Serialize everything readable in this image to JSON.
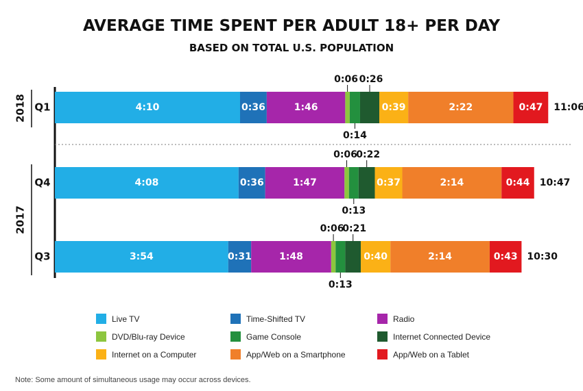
{
  "chart_data": {
    "type": "bar",
    "orientation": "horizontal",
    "stacked": true,
    "title": "AVERAGE TIME SPENT PER ADULT 18+ PER DAY",
    "subtitle": "BASED ON TOTAL U.S. POPULATION",
    "series": [
      {
        "name": "Live TV",
        "color": "#22aee6"
      },
      {
        "name": "Time-Shifted TV",
        "color": "#1f72b8"
      },
      {
        "name": "Radio",
        "color": "#a626aa"
      },
      {
        "name": "DVD/Blu-ray Device",
        "color": "#8dc63f"
      },
      {
        "name": "Game Console",
        "color": "#23903e"
      },
      {
        "name": "Internet Connected Device",
        "color": "#1f5a2f"
      },
      {
        "name": "Internet on a Computer",
        "color": "#fbb116"
      },
      {
        "name": "App/Web on a Smartphone",
        "color": "#f07f2a"
      },
      {
        "name": "App/Web on a Tablet",
        "color": "#e2191f"
      }
    ],
    "groups": [
      {
        "label": "2018",
        "rows": [
          "Q1"
        ]
      },
      {
        "label": "2017",
        "rows": [
          "Q4",
          "Q3"
        ]
      }
    ],
    "rows": [
      {
        "label": "Q1",
        "values": [
          "4:10",
          "0:36",
          "1:46",
          "0:06",
          "0:14",
          "0:26",
          "0:39",
          "2:22",
          "0:47"
        ],
        "total": "11:06"
      },
      {
        "label": "Q4",
        "values": [
          "4:08",
          "0:36",
          "1:47",
          "0:06",
          "0:13",
          "0:22",
          "0:37",
          "2:14",
          "0:44"
        ],
        "total": "10:47"
      },
      {
        "label": "Q3",
        "values": [
          "3:54",
          "0:31",
          "1:48",
          "0:06",
          "0:13",
          "0:21",
          "0:40",
          "2:14",
          "0:43"
        ],
        "total": "10:30"
      }
    ]
  },
  "note": "Note:  Some amount of simultaneous usage may occur across devices."
}
